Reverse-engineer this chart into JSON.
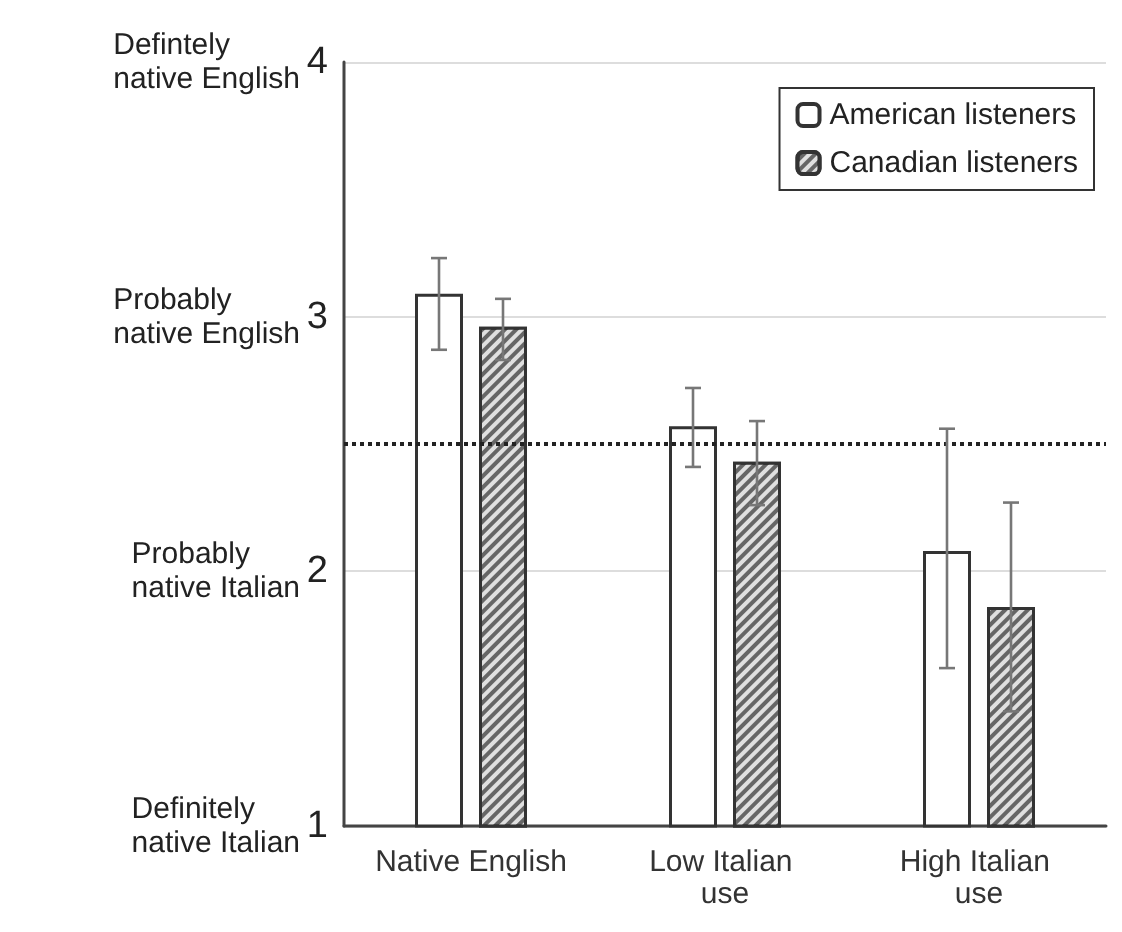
{
  "chart_data": {
    "type": "bar",
    "categories": [
      "Native English",
      "Low Italian use",
      "High Italian use"
    ],
    "series": [
      {
        "name": "American listeners",
        "color": "#ffffff",
        "values": [
          3.09,
          2.57,
          2.08
        ],
        "errors": [
          [
            2.87,
            3.23
          ],
          [
            2.41,
            2.72
          ],
          [
            1.62,
            2.56
          ]
        ]
      },
      {
        "name": "Canadian listeners",
        "color": "#666666",
        "values": [
          2.96,
          2.43,
          1.86
        ],
        "errors": [
          [
            2.83,
            3.07
          ],
          [
            2.26,
            2.59
          ],
          [
            1.45,
            2.27
          ]
        ]
      }
    ],
    "ylim": [
      1,
      4
    ],
    "yticks": [
      1,
      2,
      3,
      4
    ],
    "annotations": [
      "Definitely\nnative Italian",
      "Probably\nnative Italian",
      "Probably\nnative English",
      "Defintely\nnative English"
    ],
    "ref_lines": [
      {
        "axis": "y",
        "value": 2.5,
        "label": null,
        "line_style": "dotted",
        "color": "#222222"
      }
    ],
    "grid": "y",
    "legend": "top right"
  }
}
